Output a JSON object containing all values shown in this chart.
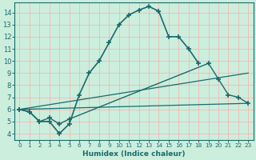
{
  "xlabel": "Humidex (Indice chaleur)",
  "bg_color": "#cceedd",
  "grid_color": "#ffaaaa",
  "line_color": "#1a6b6b",
  "xlim": [
    -0.5,
    23.5
  ],
  "ylim": [
    3.5,
    14.8
  ],
  "xticks": [
    0,
    1,
    2,
    3,
    4,
    5,
    6,
    7,
    8,
    9,
    10,
    11,
    12,
    13,
    14,
    15,
    16,
    17,
    18,
    19,
    20,
    21,
    22,
    23
  ],
  "yticks": [
    4,
    5,
    6,
    7,
    8,
    9,
    10,
    11,
    12,
    13,
    14
  ],
  "line1_x": [
    0,
    1,
    2,
    3,
    4,
    5,
    6,
    7,
    8,
    9,
    10,
    11,
    12,
    13,
    14,
    15,
    16,
    17,
    18
  ],
  "line1_y": [
    6.0,
    5.8,
    5.0,
    5.0,
    4.0,
    4.8,
    7.2,
    9.0,
    10.0,
    11.5,
    13.0,
    13.8,
    14.2,
    14.5,
    14.1,
    12.0,
    12.0,
    11.0,
    9.8
  ],
  "line2_x": [
    0,
    1,
    2,
    3,
    4,
    5,
    19,
    20,
    21,
    22,
    23
  ],
  "line2_y": [
    6.0,
    5.8,
    5.0,
    5.3,
    4.8,
    5.2,
    9.8,
    8.5,
    7.2,
    7.0,
    6.5
  ],
  "line3_x": [
    0,
    23
  ],
  "line3_y": [
    6.0,
    9.0
  ],
  "line4_x": [
    0,
    23
  ],
  "line4_y": [
    6.0,
    6.5
  ]
}
